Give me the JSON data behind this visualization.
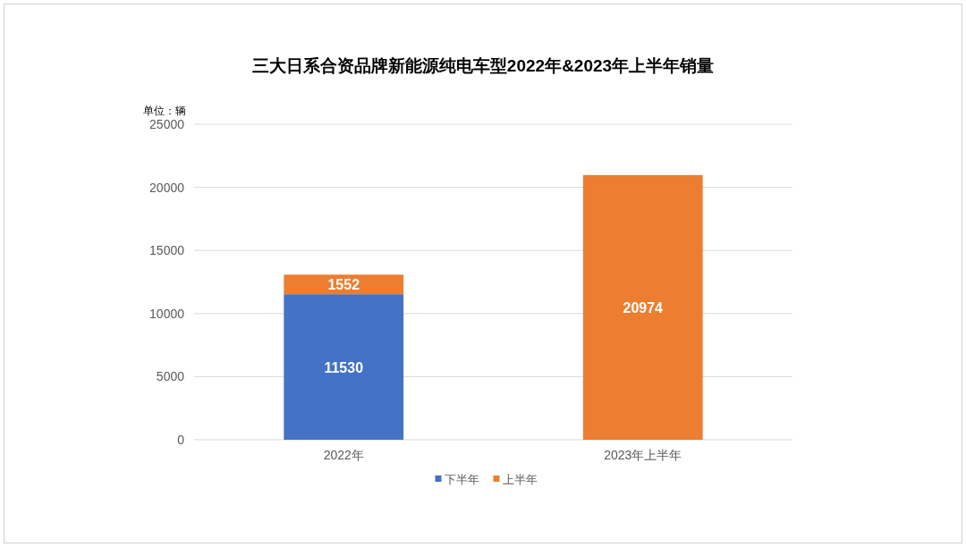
{
  "chart_data": {
    "type": "bar",
    "title": "三大日系合资品牌新能源纯电车型2022年&2023年上半年销量",
    "ylabel": "单位：辆",
    "categories": [
      "2022年",
      "2023年上半年"
    ],
    "series": [
      {
        "name": "下半年",
        "color": "#4472c4",
        "values": [
          11530,
          null
        ]
      },
      {
        "name": "上半年",
        "color": "#ed7d31",
        "values": [
          1552,
          20974
        ]
      }
    ],
    "stacked": true,
    "ylim": [
      0,
      25000
    ],
    "yticks": [
      0,
      5000,
      10000,
      15000,
      20000,
      25000
    ],
    "grid": "y",
    "legend": "bottom",
    "data_labels": true
  }
}
